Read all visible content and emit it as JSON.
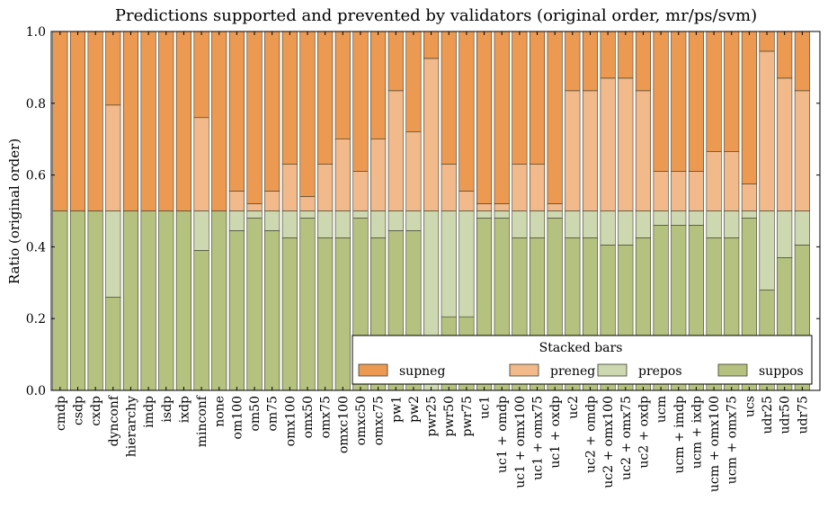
{
  "chart_data": {
    "type": "bar",
    "stacked": true,
    "title": "Predictions supported and prevented by validators (original order, mr/ps/svm)",
    "xlabel": "",
    "ylabel": "Ratio (original order)",
    "ylim": [
      0.0,
      1.0
    ],
    "yticks": [
      "0.0",
      "0.2",
      "0.4",
      "0.6",
      "0.8",
      "1.0"
    ],
    "grid": false,
    "legend": {
      "title": "Stacked bars",
      "placement": "bottom-right"
    },
    "colors": {
      "suppos": "#b5c27f",
      "prepos": "#cdd8b0",
      "preneg": "#f2b98a",
      "supneg": "#ec9a52"
    },
    "categories": [
      "cmdp",
      "csdp",
      "cxdp",
      "dynconf",
      "hierarchy",
      "imdp",
      "isdp",
      "ixdp",
      "minconf",
      "none",
      "om100",
      "om50",
      "om75",
      "omx100",
      "omx50",
      "omx75",
      "omxc100",
      "omxc50",
      "omxc75",
      "pw1",
      "pw2",
      "pwr25",
      "pwr50",
      "pwr75",
      "uc1",
      "uc1 + omdp",
      "uc1 + omx100",
      "uc1 + omx75",
      "uc1 + oxdp",
      "uc2",
      "uc2 + omdp",
      "uc2 + omx100",
      "uc2 + omx75",
      "uc2 + oxdp",
      "ucm",
      "ucm + imdp",
      "ucm + ixdp",
      "ucm + omx100",
      "ucm + omx75",
      "ucs",
      "udr25",
      "udr50",
      "udr75"
    ],
    "series": [
      {
        "name": "suppos",
        "values": [
          0.5,
          0.5,
          0.5,
          0.26,
          0.5,
          0.5,
          0.5,
          0.5,
          0.39,
          0.5,
          0.445,
          0.48,
          0.445,
          0.425,
          0.48,
          0.425,
          0.425,
          0.48,
          0.425,
          0.445,
          0.445,
          0.0,
          0.205,
          0.205,
          0.48,
          0.48,
          0.425,
          0.425,
          0.48,
          0.425,
          0.425,
          0.405,
          0.405,
          0.425,
          0.46,
          0.46,
          0.46,
          0.425,
          0.425,
          0.48,
          0.28,
          0.37,
          0.405
        ]
      },
      {
        "name": "prepos",
        "values": [
          0.0,
          0.0,
          0.0,
          0.24,
          0.0,
          0.0,
          0.0,
          0.0,
          0.11,
          0.0,
          0.055,
          0.02,
          0.055,
          0.075,
          0.02,
          0.075,
          0.075,
          0.02,
          0.075,
          0.055,
          0.055,
          0.5,
          0.295,
          0.295,
          0.02,
          0.02,
          0.075,
          0.075,
          0.02,
          0.075,
          0.075,
          0.095,
          0.095,
          0.075,
          0.04,
          0.04,
          0.04,
          0.075,
          0.075,
          0.02,
          0.22,
          0.13,
          0.095
        ]
      },
      {
        "name": "preneg",
        "values": [
          0.0,
          0.0,
          0.0,
          0.295,
          0.0,
          0.0,
          0.0,
          0.0,
          0.26,
          0.0,
          0.055,
          0.02,
          0.055,
          0.13,
          0.04,
          0.13,
          0.2,
          0.11,
          0.2,
          0.335,
          0.22,
          0.425,
          0.13,
          0.055,
          0.02,
          0.02,
          0.13,
          0.13,
          0.02,
          0.335,
          0.335,
          0.37,
          0.37,
          0.335,
          0.11,
          0.11,
          0.11,
          0.165,
          0.165,
          0.075,
          0.445,
          0.37,
          0.335
        ]
      },
      {
        "name": "supneg",
        "values": [
          0.5,
          0.5,
          0.5,
          0.205,
          0.5,
          0.5,
          0.5,
          0.5,
          0.24,
          0.5,
          0.445,
          0.48,
          0.445,
          0.37,
          0.46,
          0.37,
          0.3,
          0.39,
          0.3,
          0.165,
          0.28,
          0.075,
          0.37,
          0.445,
          0.48,
          0.48,
          0.37,
          0.37,
          0.48,
          0.165,
          0.165,
          0.13,
          0.13,
          0.165,
          0.39,
          0.39,
          0.39,
          0.335,
          0.335,
          0.425,
          0.055,
          0.13,
          0.165
        ]
      }
    ]
  }
}
